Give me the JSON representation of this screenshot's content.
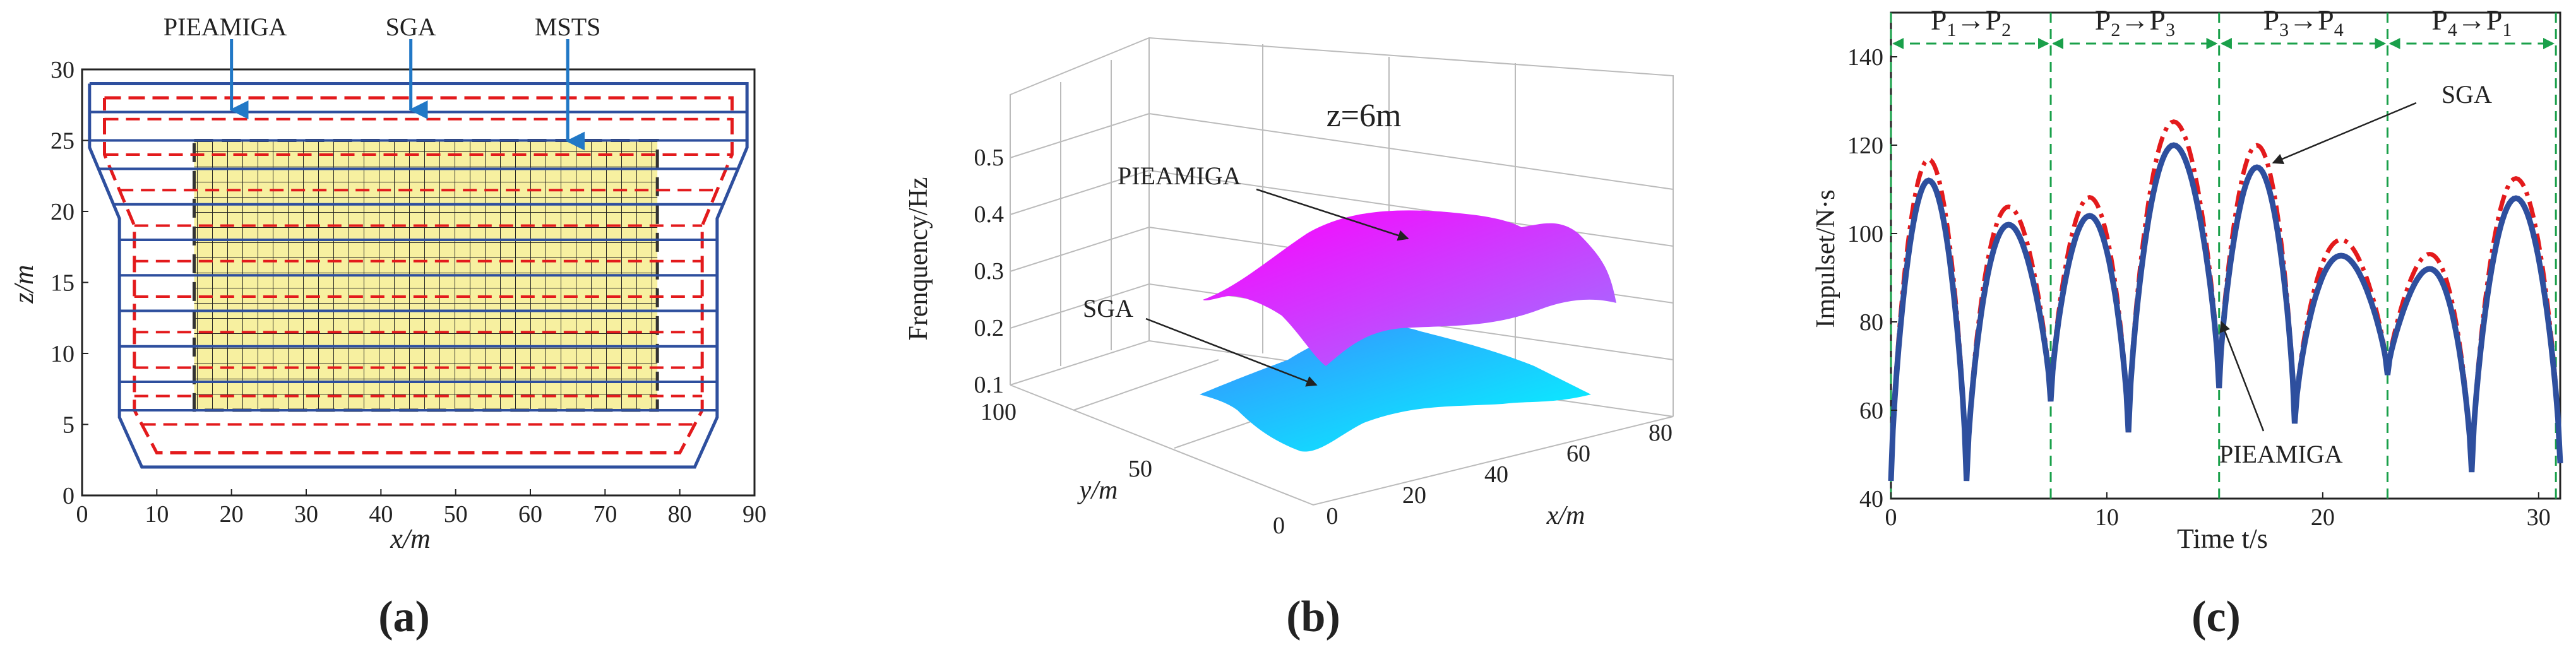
{
  "chart_data": [
    {
      "type": "other",
      "panel_label": "(a)",
      "xlabel": "x/m",
      "ylabel": "z/m",
      "xlim": [
        0,
        90
      ],
      "ylim": [
        0,
        30
      ],
      "xticks": [
        0,
        10,
        20,
        30,
        40,
        50,
        60,
        70,
        80,
        90
      ],
      "yticks": [
        0,
        5,
        10,
        15,
        20,
        25,
        30
      ],
      "annotations": [
        {
          "text": "PIEAMIGA",
          "x": 20,
          "y": 26.8
        },
        {
          "text": "SGA",
          "x": 44,
          "y": 26.8
        },
        {
          "text": "MSTS",
          "x": 65,
          "y": 24.6
        }
      ],
      "blue_outline": [
        [
          1,
          27
        ],
        [
          1,
          22
        ],
        [
          5,
          18
        ],
        [
          5,
          4
        ],
        [
          8,
          2
        ],
        [
          86,
          2
        ],
        [
          89,
          4
        ],
        [
          89,
          18
        ],
        [
          84,
          22
        ],
        [
          84,
          27
        ],
        [
          89,
          27
        ],
        [
          89,
          29
        ],
        [
          1,
          29
        ],
        [
          1,
          27
        ]
      ],
      "blue_outline_xy": [
        [
          1,
          29
        ],
        [
          89,
          29
        ],
        [
          89,
          24.5
        ],
        [
          85,
          19.5
        ],
        [
          85,
          5.5
        ],
        [
          82,
          2
        ],
        [
          8,
          2
        ],
        [
          5,
          5.5
        ],
        [
          5,
          19.5
        ],
        [
          1,
          24.5
        ],
        [
          1,
          29
        ]
      ],
      "red_outline_xy": [
        [
          3,
          28
        ],
        [
          87,
          28
        ],
        [
          87,
          24
        ],
        [
          83,
          19
        ],
        [
          83,
          6
        ],
        [
          80,
          3
        ],
        [
          10,
          3
        ],
        [
          7,
          6
        ],
        [
          7,
          19
        ],
        [
          3,
          24
        ],
        [
          3,
          28
        ]
      ],
      "blue_hlines_z": [
        27,
        25,
        23,
        20.5,
        18,
        15.5,
        13,
        10.5,
        8,
        6
      ],
      "red_dash_hlines_z": [
        26.5,
        24,
        21.5,
        19,
        16.5,
        14,
        11.5,
        9,
        7,
        5
      ],
      "mesh_region": {
        "x": [
          15,
          77
        ],
        "z": [
          6,
          25
        ]
      },
      "mesh_color": "#f7f0a0"
    },
    {
      "type": "surface3d",
      "panel_label": "(b)",
      "title": "z=6m",
      "zlabel": "Frenquency/Hz",
      "xlabel": "x/m",
      "ylabel": "y/m",
      "zticks": [
        0.1,
        0.2,
        0.3,
        0.4,
        0.5
      ],
      "xticks": [
        0,
        20,
        40,
        60,
        80
      ],
      "yticks": [
        0,
        50,
        100
      ],
      "series": [
        {
          "name": "PIEAMIGA",
          "peak": 0.43,
          "base": 0.25,
          "color_top": "#ff00ff",
          "color_bottom": "#9a6cff"
        },
        {
          "name": "SGA",
          "peak": 0.2,
          "base": 0.1,
          "color_top": "#2aa4ff",
          "color_bottom": "#00ffff"
        }
      ]
    },
    {
      "type": "line",
      "panel_label": "(c)",
      "xlabel": "Time t/s",
      "ylabel": "Impulset/N·s",
      "xlim": [
        0,
        31
      ],
      "ylim": [
        40,
        150
      ],
      "xticks": [
        0,
        10,
        20,
        30
      ],
      "yticks": [
        40,
        60,
        80,
        100,
        120,
        140
      ],
      "phase_boundaries": [
        0,
        7.4,
        15.2,
        23,
        30.8
      ],
      "phases": [
        {
          "from": "P",
          "from_sub": "1",
          "to": "P",
          "to_sub": "2"
        },
        {
          "from": "P",
          "from_sub": "2",
          "to": "P",
          "to_sub": "3"
        },
        {
          "from": "P",
          "from_sub": "3",
          "to": "P",
          "to_sub": "4"
        },
        {
          "from": "P",
          "from_sub": "4",
          "to": "P",
          "to_sub": "1"
        }
      ],
      "annotations": [
        {
          "text": "SGA",
          "x": 25.5,
          "y": 131
        },
        {
          "text": "PIEAMIGA",
          "x": 15.5,
          "y": 51
        }
      ],
      "cycles": [
        {
          "t0": 0,
          "t1": 3.5,
          "peak": 112,
          "end": 44
        },
        {
          "t0": 3.5,
          "t1": 7.4,
          "peak": 102,
          "end": 62
        },
        {
          "t0": 7.4,
          "t1": 11.0,
          "peak": 104,
          "end": 55
        },
        {
          "t0": 11.0,
          "t1": 15.2,
          "peak": 120,
          "end": 65
        },
        {
          "t0": 15.2,
          "t1": 18.7,
          "peak": 115,
          "end": 57
        },
        {
          "t0": 18.7,
          "t1": 23.0,
          "peak": 95,
          "end": 68
        },
        {
          "t0": 23.0,
          "t1": 26.9,
          "peak": 92,
          "end": 46
        },
        {
          "t0": 26.9,
          "t1": 31.0,
          "peak": 108,
          "end": 48
        }
      ],
      "series": [
        {
          "name": "PIEAMIGA",
          "color": "#2e4f9e",
          "style": "solid",
          "scale": 1.0
        },
        {
          "name": "SGA",
          "color": "#e31a1c",
          "style": "dashdot",
          "scale": 1.07
        }
      ]
    }
  ]
}
